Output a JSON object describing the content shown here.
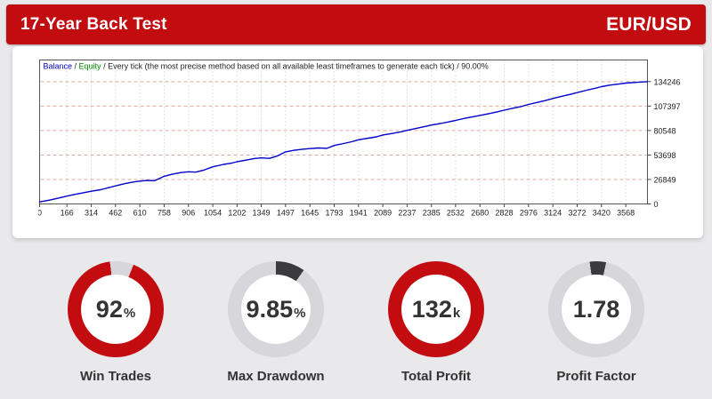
{
  "header": {
    "title": "17-Year Back Test",
    "pair": "EUR/USD",
    "bg_color": "#c20c10",
    "text_color": "#ffffff"
  },
  "chart_data": {
    "type": "line",
    "title": "Balance / Equity / Every tick (the most precise method based on all available least timeframes to generate each tick) / 90.00%",
    "legend": {
      "balance_label": "Balance",
      "equity_label": "Equity",
      "separator": " / ",
      "suffix": "Every tick (the most precise method based on all available least timeframes to generate each tick) / 90.00%",
      "balance_color": "#0000cc",
      "equity_color": "#008a00",
      "text_color": "#222222"
    },
    "xlabel": "",
    "ylabel": "",
    "x_ticks": [
      0,
      166,
      314,
      462,
      610,
      758,
      906,
      1054,
      1202,
      1349,
      1497,
      1645,
      1793,
      1941,
      2089,
      2237,
      2385,
      2532,
      2680,
      2828,
      2976,
      3124,
      3272,
      3420,
      3568
    ],
    "y_ticks": [
      0,
      26849,
      53698,
      80548,
      107397,
      134246
    ],
    "x_axis_max": 3700,
    "y_axis_max": 158000,
    "grid": {
      "h_color": "#dfa8a8",
      "v_color": "#c6c6c6",
      "on": true
    },
    "frame_color": "#555555",
    "tick_color": "#444444",
    "label_color": "#222222",
    "legend_position": "top-left",
    "series": [
      {
        "name": "Balance",
        "color": "#0000cc",
        "points": [
          [
            0,
            2246
          ],
          [
            60,
            4200
          ],
          [
            120,
            6600
          ],
          [
            166,
            8600
          ],
          [
            220,
            10600
          ],
          [
            270,
            12400
          ],
          [
            314,
            13900
          ],
          [
            370,
            15600
          ],
          [
            420,
            17800
          ],
          [
            462,
            19800
          ],
          [
            520,
            22300
          ],
          [
            570,
            24100
          ],
          [
            610,
            25100
          ],
          [
            655,
            25700
          ],
          [
            700,
            25500
          ],
          [
            758,
            30300
          ],
          [
            810,
            32800
          ],
          [
            860,
            34400
          ],
          [
            906,
            35300
          ],
          [
            950,
            34900
          ],
          [
            1000,
            37200
          ],
          [
            1054,
            40800
          ],
          [
            1120,
            43400
          ],
          [
            1170,
            44900
          ],
          [
            1202,
            46300
          ],
          [
            1260,
            48200
          ],
          [
            1310,
            49900
          ],
          [
            1349,
            50500
          ],
          [
            1400,
            50000
          ],
          [
            1450,
            52900
          ],
          [
            1497,
            57200
          ],
          [
            1550,
            58900
          ],
          [
            1600,
            60100
          ],
          [
            1645,
            60800
          ],
          [
            1700,
            61400
          ],
          [
            1750,
            61100
          ],
          [
            1793,
            64200
          ],
          [
            1850,
            66300
          ],
          [
            1900,
            68300
          ],
          [
            1941,
            70400
          ],
          [
            2000,
            72200
          ],
          [
            2050,
            73600
          ],
          [
            2089,
            75700
          ],
          [
            2150,
            77400
          ],
          [
            2200,
            79200
          ],
          [
            2237,
            80800
          ],
          [
            2300,
            83200
          ],
          [
            2350,
            85100
          ],
          [
            2385,
            86600
          ],
          [
            2440,
            88300
          ],
          [
            2490,
            90000
          ],
          [
            2532,
            91700
          ],
          [
            2590,
            94000
          ],
          [
            2640,
            95800
          ],
          [
            2680,
            97100
          ],
          [
            2740,
            99300
          ],
          [
            2790,
            101200
          ],
          [
            2828,
            102900
          ],
          [
            2880,
            105000
          ],
          [
            2930,
            106900
          ],
          [
            2976,
            109200
          ],
          [
            3030,
            111500
          ],
          [
            3080,
            113500
          ],
          [
            3124,
            115800
          ],
          [
            3180,
            118200
          ],
          [
            3230,
            120300
          ],
          [
            3272,
            122200
          ],
          [
            3330,
            124800
          ],
          [
            3380,
            126900
          ],
          [
            3420,
            128700
          ],
          [
            3470,
            130400
          ],
          [
            3520,
            131500
          ],
          [
            3568,
            132600
          ],
          [
            3640,
            133500
          ],
          [
            3700,
            134246
          ]
        ]
      }
    ]
  },
  "gauges": [
    {
      "id": "win-trades",
      "value": "92",
      "unit": "%",
      "label": "Win Trades",
      "ring": {
        "start_deg": -7,
        "segments": [
          {
            "color": "#d7d7db",
            "pct": 8
          },
          {
            "color": "#c20c10",
            "pct": 92
          }
        ]
      }
    },
    {
      "id": "max-drawdown",
      "value": "9.85",
      "unit": "%",
      "label": "Max Drawdown",
      "ring": {
        "start_deg": 0,
        "segments": [
          {
            "color": "#3b3b3d",
            "pct": 9.85
          },
          {
            "color": "#d7d7db",
            "pct": 90.15
          }
        ]
      }
    },
    {
      "id": "total-profit",
      "value": "132",
      "unit": "k",
      "label": "Total Profit",
      "ring": {
        "start_deg": 0,
        "segments": [
          {
            "color": "#c20c10",
            "pct": 100
          }
        ]
      }
    },
    {
      "id": "profit-factor",
      "value": "1.78",
      "unit": "",
      "label": "Profit Factor",
      "ring": {
        "start_deg": -8,
        "segments": [
          {
            "color": "#3b3b3d",
            "pct": 5.5
          },
          {
            "color": "#d7d7db",
            "pct": 94.5
          }
        ]
      }
    }
  ],
  "colors": {
    "page_bg": "#e9e9eb",
    "card_bg": "#ffffff",
    "accent_red": "#c20c10",
    "ring_gray": "#d7d7db",
    "ring_dark": "#3b3b3d",
    "number_color": "#333333",
    "label_color": "#333333"
  }
}
